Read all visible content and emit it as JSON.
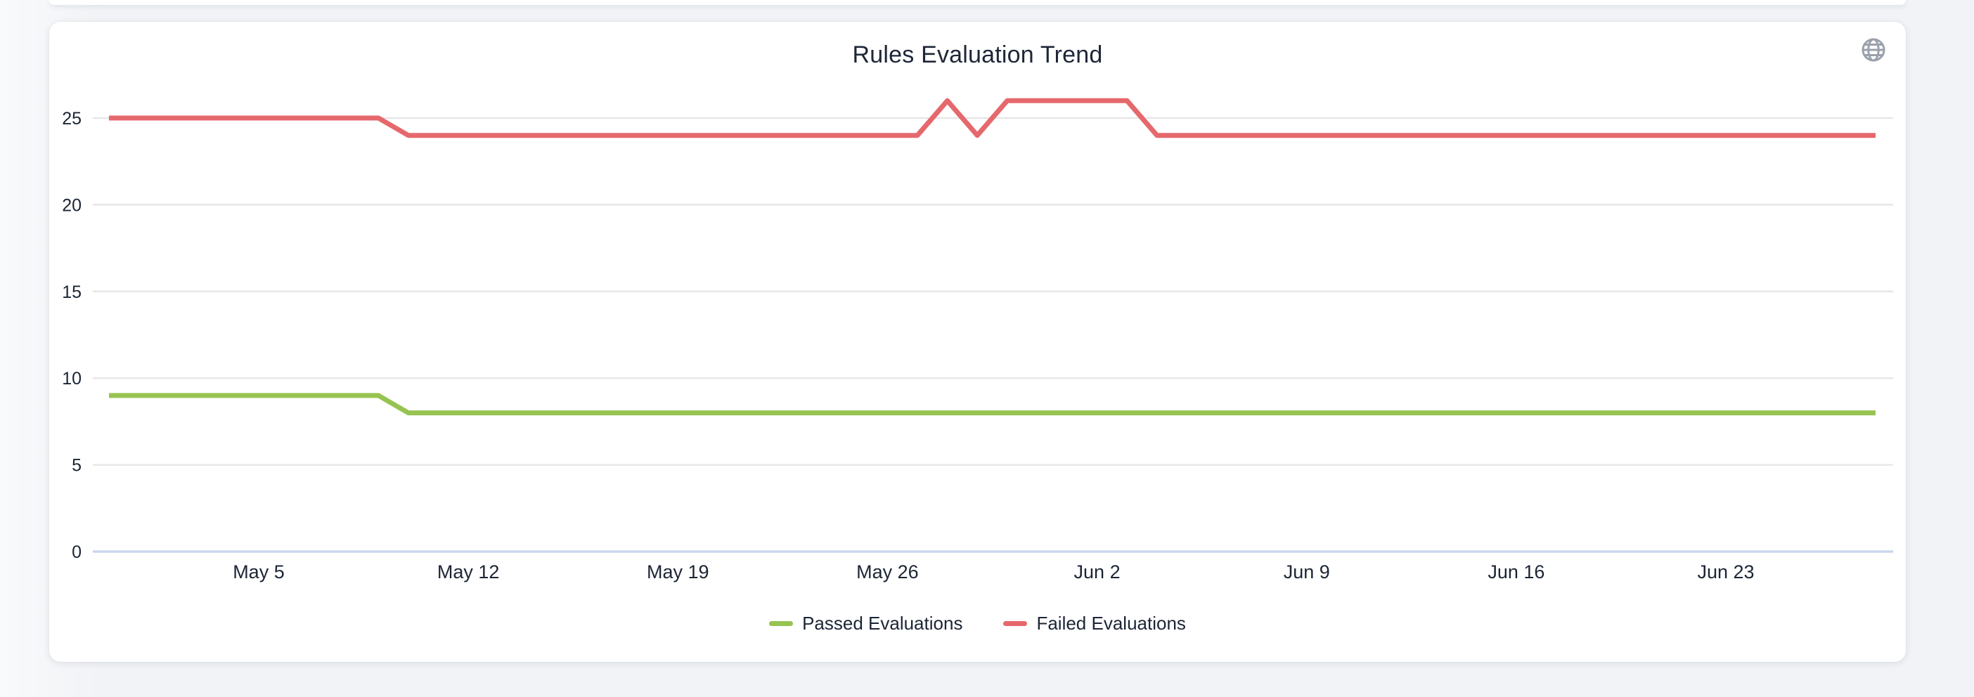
{
  "card": {
    "title": "Rules Evaluation Trend",
    "header_icon": "globe"
  },
  "chart_data": {
    "type": "line",
    "title": "Rules Evaluation Trend",
    "grid": true,
    "legend_position": "bottom",
    "y_ticks": [
      0,
      5,
      10,
      15,
      20,
      25
    ],
    "ylim": [
      0,
      26.5
    ],
    "x_tick_labels": [
      "May 5",
      "May 12",
      "May 19",
      "May 26",
      "Jun 2",
      "Jun 9",
      "Jun 16",
      "Jun 23"
    ],
    "dates": [
      "Apr 30",
      "May 1",
      "May 2",
      "May 3",
      "May 4",
      "May 5",
      "May 6",
      "May 7",
      "May 8",
      "May 9",
      "May 10",
      "May 11",
      "May 12",
      "May 13",
      "May 14",
      "May 15",
      "May 16",
      "May 17",
      "May 18",
      "May 19",
      "May 20",
      "May 21",
      "May 22",
      "May 23",
      "May 24",
      "May 25",
      "May 26",
      "May 27",
      "May 28",
      "May 29",
      "May 30",
      "May 31",
      "Jun 1",
      "Jun 2",
      "Jun 3",
      "Jun 4",
      "Jun 5",
      "Jun 6",
      "Jun 7",
      "Jun 8",
      "Jun 9",
      "Jun 10",
      "Jun 11",
      "Jun 12",
      "Jun 13",
      "Jun 14",
      "Jun 15",
      "Jun 16",
      "Jun 17",
      "Jun 18",
      "Jun 19",
      "Jun 20",
      "Jun 21",
      "Jun 22",
      "Jun 23",
      "Jun 24",
      "Jun 25",
      "Jun 26",
      "Jun 27",
      "Jun 28"
    ],
    "series": [
      {
        "name": "Passed Evaluations",
        "color": "#97c351",
        "values": [
          9,
          9,
          9,
          9,
          9,
          9,
          9,
          9,
          9,
          9,
          8,
          8,
          8,
          8,
          8,
          8,
          8,
          8,
          8,
          8,
          8,
          8,
          8,
          8,
          8,
          8,
          8,
          8,
          8,
          8,
          8,
          8,
          8,
          8,
          8,
          8,
          8,
          8,
          8,
          8,
          8,
          8,
          8,
          8,
          8,
          8,
          8,
          8,
          8,
          8,
          8,
          8,
          8,
          8,
          8,
          8,
          8,
          8,
          8,
          8
        ]
      },
      {
        "name": "Failed Evaluations",
        "color": "#e5686d",
        "values": [
          25,
          25,
          25,
          25,
          25,
          25,
          25,
          25,
          25,
          25,
          24,
          24,
          24,
          24,
          24,
          24,
          24,
          24,
          24,
          24,
          24,
          24,
          24,
          24,
          24,
          24,
          24,
          24,
          26,
          24,
          26,
          26,
          26,
          26,
          26,
          24,
          24,
          24,
          24,
          24,
          24,
          24,
          24,
          24,
          24,
          24,
          24,
          24,
          24,
          24,
          24,
          24,
          24,
          24,
          24,
          24,
          24,
          24,
          24,
          24
        ]
      }
    ],
    "colors": {
      "gridline": "#e7e7e7",
      "zero_axis_line": "#ccd6eb",
      "tick_label": "#1c2535",
      "title": "#1e2637",
      "globe_icon": "#9aa1ab"
    }
  }
}
